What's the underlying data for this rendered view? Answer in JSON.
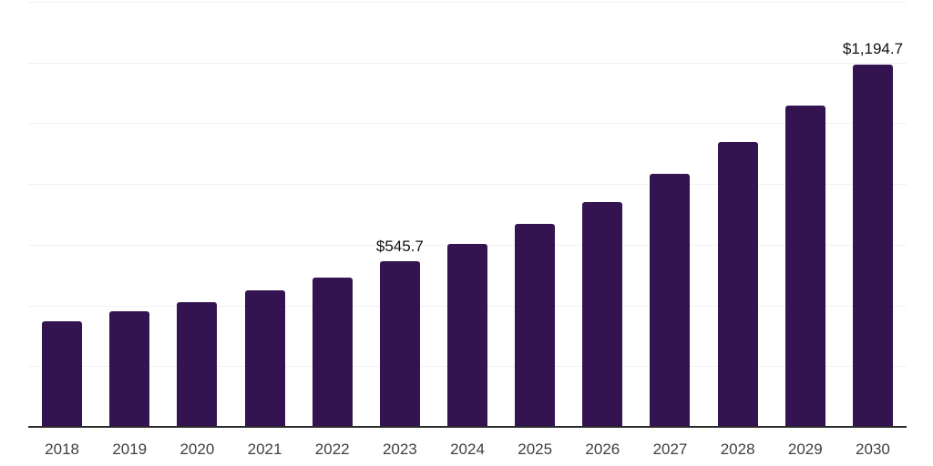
{
  "chart_data": {
    "type": "bar",
    "title": "",
    "xlabel": "",
    "ylabel": "",
    "categories": [
      "2018",
      "2019",
      "2020",
      "2021",
      "2022",
      "2023",
      "2024",
      "2025",
      "2026",
      "2027",
      "2028",
      "2029",
      "2030"
    ],
    "values": [
      348,
      381,
      411,
      450,
      492,
      545.7,
      603,
      669,
      741,
      834,
      939,
      1059,
      1194.7
    ],
    "data_labels": [
      "",
      "",
      "",
      "",
      "",
      "$545.7",
      "",
      "",
      "",
      "",
      "",
      "",
      "$1,194.7"
    ],
    "ylim": [
      0,
      1400
    ],
    "gridline_step": 200,
    "grid": "horizontal-only, no y-axis tick labels",
    "legend": "none",
    "bar_count": 13
  },
  "colors": {
    "background": "#ffffff",
    "bar": "#331450",
    "gridline": "#f0f0f0",
    "axis_line": "#2b2b2b",
    "tick_label": "#404040",
    "data_label": "#111111"
  }
}
